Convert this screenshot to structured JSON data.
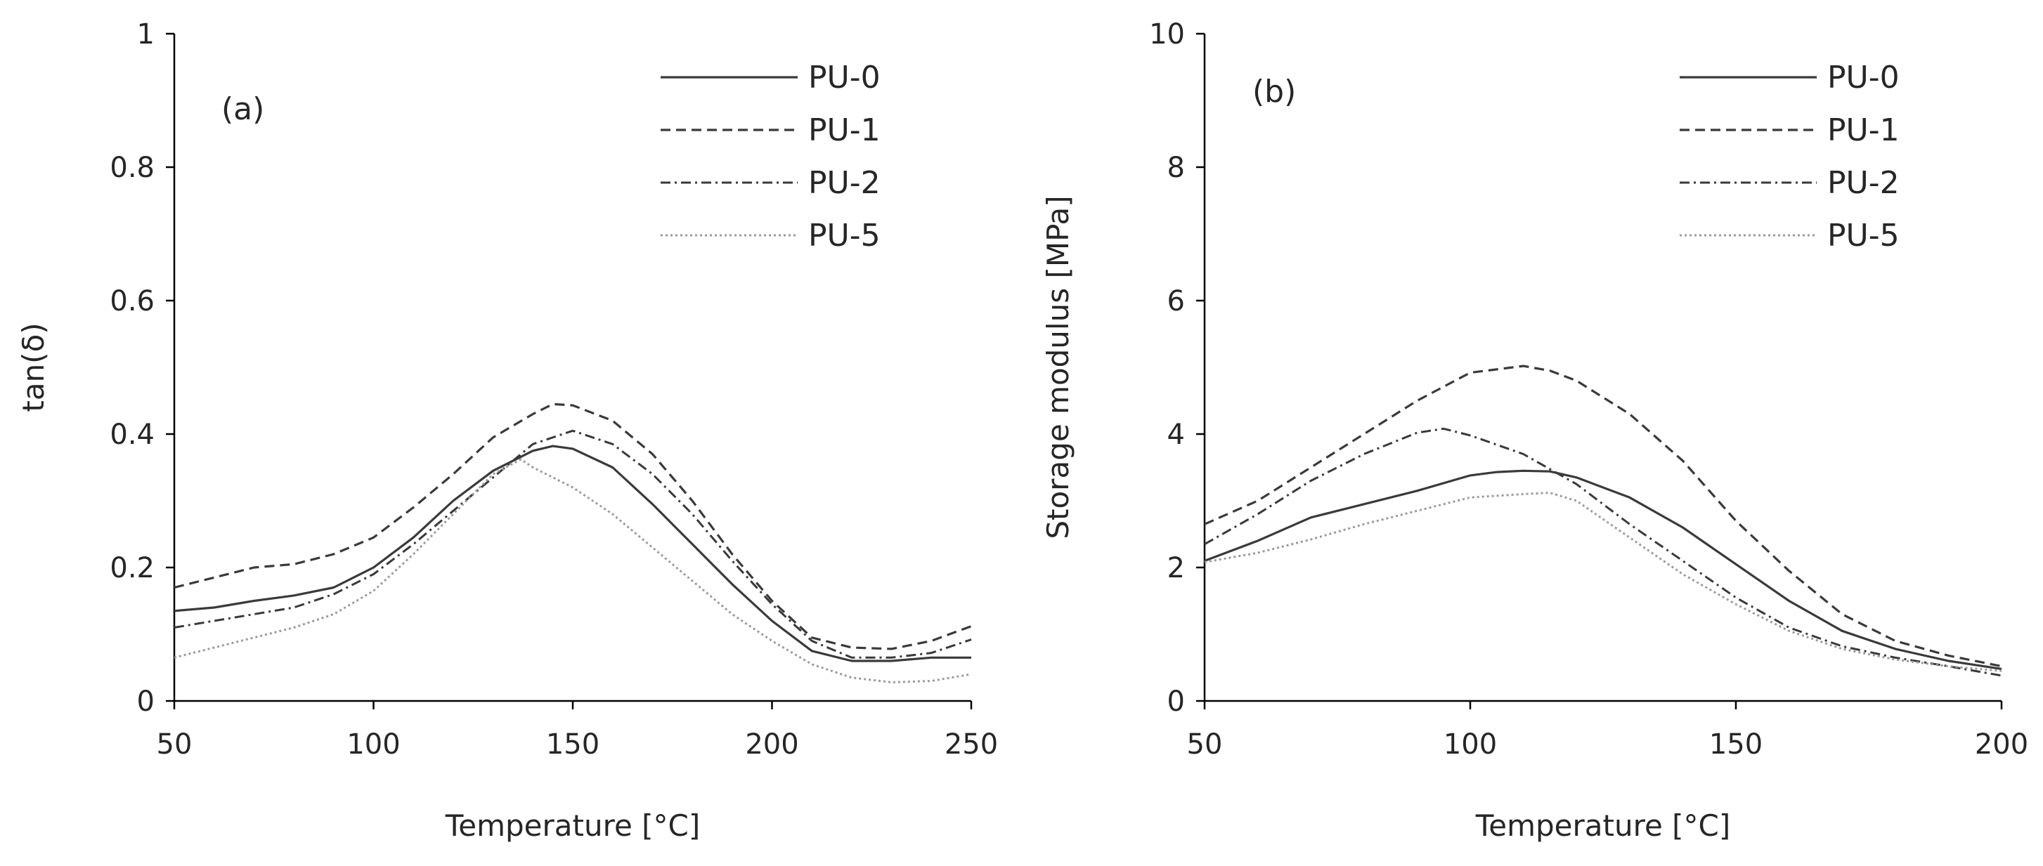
{
  "chart_data": [
    {
      "type": "line",
      "panel_label": "(a)",
      "xlabel": "Temperature [°C]",
      "ylabel": "tan(δ)",
      "xlim": [
        50,
        250
      ],
      "ylim": [
        0,
        1
      ],
      "xticks": [
        "50",
        "100",
        "150",
        "200",
        "250"
      ],
      "yticks": [
        "0",
        "0.2",
        "0.4",
        "0.6",
        "0.8",
        "1"
      ],
      "legend_position": "top-right",
      "series": [
        {
          "name": "PU-0",
          "style": "solid",
          "x": [
            50,
            60,
            70,
            80,
            90,
            100,
            110,
            120,
            130,
            140,
            145,
            150,
            160,
            170,
            180,
            190,
            200,
            210,
            220,
            230,
            240,
            250
          ],
          "y": [
            0.135,
            0.14,
            0.15,
            0.158,
            0.17,
            0.2,
            0.245,
            0.3,
            0.345,
            0.375,
            0.382,
            0.378,
            0.35,
            0.295,
            0.235,
            0.175,
            0.12,
            0.075,
            0.06,
            0.06,
            0.065,
            0.065
          ]
        },
        {
          "name": "PU-1",
          "style": "dashed",
          "x": [
            50,
            60,
            70,
            80,
            90,
            100,
            110,
            120,
            130,
            140,
            145,
            150,
            160,
            170,
            180,
            190,
            200,
            210,
            220,
            230,
            240,
            250
          ],
          "y": [
            0.17,
            0.185,
            0.2,
            0.205,
            0.22,
            0.245,
            0.29,
            0.34,
            0.395,
            0.43,
            0.445,
            0.443,
            0.42,
            0.37,
            0.3,
            0.22,
            0.15,
            0.095,
            0.08,
            0.078,
            0.09,
            0.112
          ]
        },
        {
          "name": "PU-2",
          "style": "dashdot",
          "x": [
            50,
            60,
            70,
            80,
            90,
            100,
            110,
            120,
            130,
            140,
            150,
            160,
            170,
            180,
            190,
            200,
            210,
            220,
            230,
            240,
            250
          ],
          "y": [
            0.11,
            0.12,
            0.13,
            0.14,
            0.16,
            0.19,
            0.235,
            0.285,
            0.335,
            0.385,
            0.405,
            0.385,
            0.34,
            0.28,
            0.21,
            0.145,
            0.09,
            0.065,
            0.065,
            0.072,
            0.092
          ]
        },
        {
          "name": "PU-5",
          "style": "dotted",
          "x": [
            50,
            60,
            70,
            80,
            90,
            100,
            110,
            120,
            130,
            137,
            140,
            150,
            160,
            170,
            180,
            190,
            200,
            210,
            220,
            230,
            240,
            250
          ],
          "y": [
            0.065,
            0.08,
            0.095,
            0.11,
            0.13,
            0.165,
            0.22,
            0.28,
            0.34,
            0.362,
            0.35,
            0.32,
            0.28,
            0.23,
            0.18,
            0.13,
            0.09,
            0.055,
            0.035,
            0.028,
            0.03,
            0.04
          ]
        }
      ]
    },
    {
      "type": "line",
      "panel_label": "(b)",
      "xlabel": "Temperature [°C]",
      "ylabel": "Storage modulus [MPa]",
      "xlim": [
        50,
        200
      ],
      "ylim": [
        0,
        10
      ],
      "xticks": [
        "50",
        "100",
        "150",
        "200"
      ],
      "yticks": [
        "0",
        "2",
        "4",
        "6",
        "8",
        "10"
      ],
      "legend_position": "top-right",
      "series": [
        {
          "name": "PU-0",
          "style": "solid",
          "x": [
            50,
            60,
            70,
            80,
            90,
            100,
            105,
            110,
            115,
            120,
            130,
            140,
            150,
            160,
            170,
            180,
            190,
            200
          ],
          "y": [
            2.1,
            2.4,
            2.75,
            2.95,
            3.15,
            3.38,
            3.43,
            3.45,
            3.44,
            3.35,
            3.05,
            2.6,
            2.05,
            1.5,
            1.05,
            0.78,
            0.6,
            0.48
          ]
        },
        {
          "name": "PU-1",
          "style": "dashed",
          "x": [
            50,
            60,
            70,
            80,
            90,
            100,
            110,
            115,
            120,
            130,
            140,
            150,
            160,
            170,
            180,
            190,
            200
          ],
          "y": [
            2.65,
            3.0,
            3.5,
            4.0,
            4.5,
            4.92,
            5.02,
            4.95,
            4.8,
            4.3,
            3.6,
            2.7,
            1.95,
            1.3,
            0.9,
            0.68,
            0.52
          ]
        },
        {
          "name": "PU-2",
          "style": "dashdot",
          "x": [
            50,
            60,
            70,
            80,
            90,
            95,
            100,
            110,
            120,
            130,
            140,
            150,
            160,
            170,
            180,
            190,
            200
          ],
          "y": [
            2.35,
            2.8,
            3.3,
            3.7,
            4.02,
            4.08,
            3.98,
            3.7,
            3.25,
            2.65,
            2.1,
            1.55,
            1.1,
            0.82,
            0.65,
            0.52,
            0.38
          ]
        },
        {
          "name": "PU-5",
          "style": "dotted",
          "x": [
            50,
            60,
            70,
            80,
            90,
            100,
            110,
            115,
            120,
            130,
            140,
            150,
            160,
            170,
            180,
            190,
            200
          ],
          "y": [
            2.08,
            2.22,
            2.42,
            2.65,
            2.85,
            3.05,
            3.1,
            3.12,
            3.0,
            2.45,
            1.9,
            1.45,
            1.05,
            0.78,
            0.62,
            0.52,
            0.45
          ]
        }
      ]
    }
  ]
}
